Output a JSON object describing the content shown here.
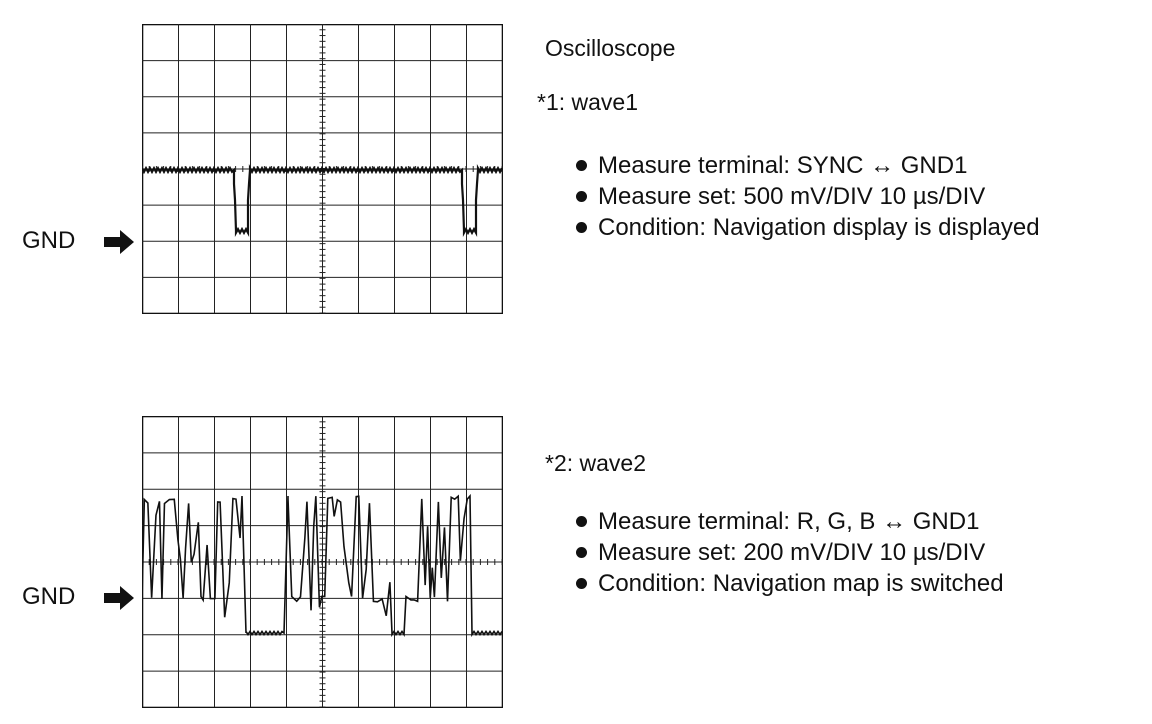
{
  "title": "Oscilloscope",
  "panels": [
    {
      "id": "wave1",
      "label": "*1: wave1",
      "gnd_label": "GND",
      "bullets": [
        "Measure terminal: SYNC ↔ GND1",
        "Measure set: 500 mV/DIV 10 µs/DIV",
        "Condition: Navigation display is displayed"
      ]
    },
    {
      "id": "wave2",
      "label": "*2: wave2",
      "gnd_label": "GND",
      "bullets": [
        "Measure terminal: R, G, B ↔ GND1",
        "Measure set: 200 mV/DIV 10 µs/DIV",
        "Condition: Navigation map is switched"
      ]
    }
  ]
}
